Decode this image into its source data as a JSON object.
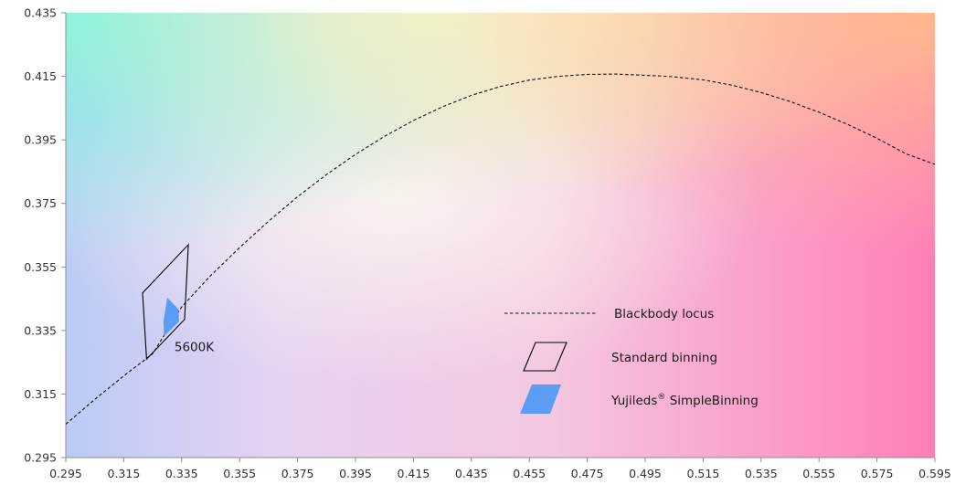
{
  "chart_data": {
    "type": "scatter",
    "title": "",
    "xlabel": "",
    "ylabel": "",
    "xlim": [
      0.295,
      0.595
    ],
    "ylim": [
      0.295,
      0.435
    ],
    "x_ticks": [
      "0.295",
      "0.315",
      "0.335",
      "0.355",
      "0.375",
      "0.395",
      "0.415",
      "0.435",
      "0.455",
      "0.475",
      "0.495",
      "0.515",
      "0.535",
      "0.555",
      "0.575",
      "0.595"
    ],
    "y_ticks": [
      "0.295",
      "0.315",
      "0.335",
      "0.355",
      "0.375",
      "0.395",
      "0.415",
      "0.435"
    ],
    "grid": false,
    "background": "CIE chromaticity color gradient",
    "colors": {
      "locus": "#111111",
      "standard_bin_outline": "#000000",
      "simple_bin_fill": "#5b9cf5"
    },
    "series": [
      {
        "name": "Blackbody locus",
        "style": "dashed-line",
        "points": [
          [
            0.295,
            0.3055
          ],
          [
            0.305,
            0.3133
          ],
          [
            0.315,
            0.3207
          ],
          [
            0.325,
            0.3277
          ],
          [
            0.335,
            0.3424
          ],
          [
            0.345,
            0.3523
          ],
          [
            0.355,
            0.3611
          ],
          [
            0.365,
            0.3694
          ],
          [
            0.375,
            0.3771
          ],
          [
            0.385,
            0.3841
          ],
          [
            0.395,
            0.3904
          ],
          [
            0.405,
            0.3961
          ],
          [
            0.415,
            0.4011
          ],
          [
            0.425,
            0.4054
          ],
          [
            0.435,
            0.409
          ],
          [
            0.445,
            0.4118
          ],
          [
            0.455,
            0.4138
          ],
          [
            0.465,
            0.415
          ],
          [
            0.475,
            0.4156
          ],
          [
            0.485,
            0.4157
          ],
          [
            0.495,
            0.4153
          ],
          [
            0.503,
            0.415
          ],
          [
            0.515,
            0.4139
          ],
          [
            0.525,
            0.4122
          ],
          [
            0.535,
            0.4099
          ],
          [
            0.545,
            0.4071
          ],
          [
            0.555,
            0.4037
          ],
          [
            0.565,
            0.3998
          ],
          [
            0.575,
            0.3955
          ],
          [
            0.585,
            0.3906
          ],
          [
            0.595,
            0.3873
          ]
        ]
      },
      {
        "name": "Standard binning",
        "style": "outline-polygon",
        "points": [
          [
            0.3215,
            0.3468
          ],
          [
            0.3373,
            0.362
          ],
          [
            0.336,
            0.3385
          ],
          [
            0.3229,
            0.326
          ]
        ]
      },
      {
        "name": "Yujileds® SimpleBinning",
        "style": "filled-polygon",
        "points": [
          [
            0.33,
            0.3453
          ],
          [
            0.3339,
            0.3417
          ],
          [
            0.3341,
            0.3378
          ],
          [
            0.3289,
            0.3332
          ],
          [
            0.3287,
            0.3378
          ]
        ]
      }
    ],
    "annotations": [
      {
        "text": "5600K",
        "x": 0.3325,
        "y": 0.33
      }
    ],
    "legend": {
      "placement": "lower-right",
      "entries": [
        {
          "label": "Blackbody locus",
          "symbol": "dashed-line"
        },
        {
          "label": "Standard binning",
          "symbol": "outline-parallelogram"
        },
        {
          "label_prefix": "Yujileds",
          "label_sup": "®",
          "label_suffix": " SimpleBinning",
          "symbol": "filled-parallelogram"
        }
      ]
    }
  }
}
